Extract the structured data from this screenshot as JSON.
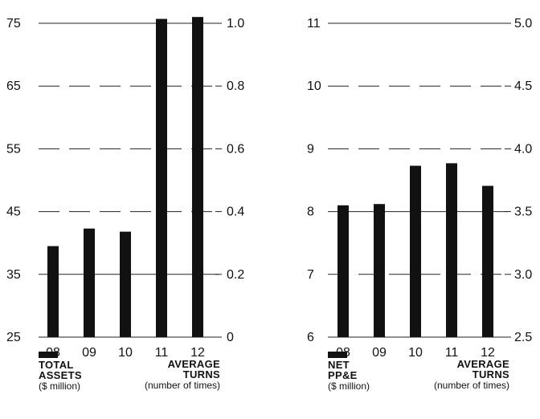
{
  "chart_data": [
    {
      "type": "bar",
      "categories": [
        "08",
        "09",
        "10",
        "11",
        "12"
      ],
      "series": [
        {
          "name": "TOTAL ASSETS",
          "unit": "($ million)",
          "values": [
            39.5,
            42.3,
            41.8,
            75.7,
            76.0
          ]
        }
      ],
      "ylim": [
        25,
        75
      ],
      "yticks": [
        "25",
        "35",
        "45",
        "55",
        "65",
        "75"
      ],
      "ylim_right": [
        0,
        1.0
      ],
      "yticks_right": [
        "0",
        "0.2",
        "0.4",
        "0.6",
        "0.8",
        "1.0"
      ],
      "right_axis_label": "AVERAGE TURNS",
      "right_axis_unit": "(number of times)",
      "grid": true
    },
    {
      "type": "bar",
      "categories": [
        "08",
        "09",
        "10",
        "11",
        "12"
      ],
      "series": [
        {
          "name": "NET PP&E",
          "unit": "($ million)",
          "values": [
            8.1,
            8.12,
            8.73,
            8.77,
            8.41
          ]
        }
      ],
      "ylim": [
        6,
        11
      ],
      "yticks": [
        "6",
        "7",
        "8",
        "9",
        "10",
        "11"
      ],
      "ylim_right": [
        2.5,
        5.0
      ],
      "yticks_right": [
        "2.5",
        "3.0",
        "3.5",
        "4.0",
        "4.5",
        "5.0"
      ],
      "right_axis_label": "AVERAGE TURNS",
      "right_axis_unit": "(number of times)",
      "grid": true
    }
  ],
  "legend": [
    {
      "title1": "TOTAL",
      "title2": "ASSETS",
      "unit": "($ million)",
      "right1": "AVERAGE",
      "right2": "TURNS",
      "right_unit": "(number of times)"
    },
    {
      "title1": "NET",
      "title2": "PP&E",
      "unit": "($ million)",
      "right1": "AVERAGE",
      "right2": "TURNS",
      "right_unit": "(number of times)"
    }
  ]
}
